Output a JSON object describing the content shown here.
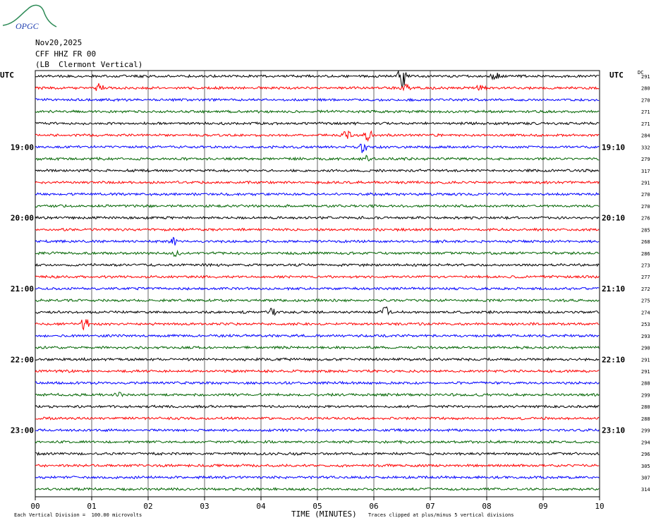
{
  "logo_text": "OPGC",
  "header": {
    "date": "Nov20,2025",
    "channel": "CFF HHZ FR 00",
    "location": "(LB  Clermont Vertical)"
  },
  "left_timezone": "UTC",
  "right_timezone": "UTC",
  "dc_label": "DC",
  "footer": {
    "scale_note": "Each Vertical Division =  100.00 microvolts",
    "x_title": "TIME (MINUTES)",
    "clip_note": "Traces clipped at plus/minus 5 vertical divisions"
  },
  "colors": {
    "cycle": [
      "#000000",
      "#ff0000",
      "#0000ff",
      "#006400"
    ],
    "grid": "#000000"
  },
  "chart_data": {
    "type": "line",
    "x_ticks": [
      "00",
      "01",
      "02",
      "03",
      "04",
      "05",
      "06",
      "07",
      "08",
      "09",
      "10"
    ],
    "xlim": [
      0,
      10
    ],
    "left_hour_labels": [
      {
        "row": 6,
        "text": "19:00"
      },
      {
        "row": 12,
        "text": "20:00"
      },
      {
        "row": 18,
        "text": "21:00"
      },
      {
        "row": 24,
        "text": "22:00"
      },
      {
        "row": 30,
        "text": "23:00"
      }
    ],
    "right_hour_labels": [
      {
        "row": 6,
        "text": "19:10"
      },
      {
        "row": 12,
        "text": "20:10"
      },
      {
        "row": 18,
        "text": "21:10"
      },
      {
        "row": 24,
        "text": "22:10"
      },
      {
        "row": 30,
        "text": "23:10"
      }
    ],
    "dc_values": [
      "291",
      "280",
      "270",
      "271",
      "271",
      "284",
      "332",
      "279",
      "317",
      "291",
      "270",
      "270",
      "276",
      "285",
      "268",
      "286",
      "273",
      "277",
      "272",
      "275",
      "274",
      "253",
      "293",
      "290",
      "291",
      "291",
      "288",
      "299",
      "280",
      "288",
      "299",
      "294",
      "296",
      "305",
      "307",
      "314"
    ],
    "events": [
      {
        "row": 0,
        "minute": 6.5,
        "amplitude": 2.0
      },
      {
        "row": 0,
        "minute": 8.15,
        "amplitude": 1.0
      },
      {
        "row": 1,
        "minute": 1.15,
        "amplitude": 1.2
      },
      {
        "row": 1,
        "minute": 6.55,
        "amplitude": 0.9
      },
      {
        "row": 1,
        "minute": 7.9,
        "amplitude": 0.7
      },
      {
        "row": 5,
        "minute": 5.5,
        "amplitude": 1.0
      },
      {
        "row": 5,
        "minute": 5.9,
        "amplitude": 1.1
      },
      {
        "row": 6,
        "minute": 5.8,
        "amplitude": 1.0
      },
      {
        "row": 7,
        "minute": 5.85,
        "amplitude": 0.7
      },
      {
        "row": 14,
        "minute": 2.45,
        "amplitude": 0.8
      },
      {
        "row": 15,
        "minute": 2.5,
        "amplitude": 0.7
      },
      {
        "row": 20,
        "minute": 4.2,
        "amplitude": 0.9
      },
      {
        "row": 20,
        "minute": 6.2,
        "amplitude": 1.0
      },
      {
        "row": 21,
        "minute": 0.88,
        "amplitude": 1.3
      },
      {
        "row": 27,
        "minute": 1.5,
        "amplitude": 0.6
      }
    ]
  }
}
